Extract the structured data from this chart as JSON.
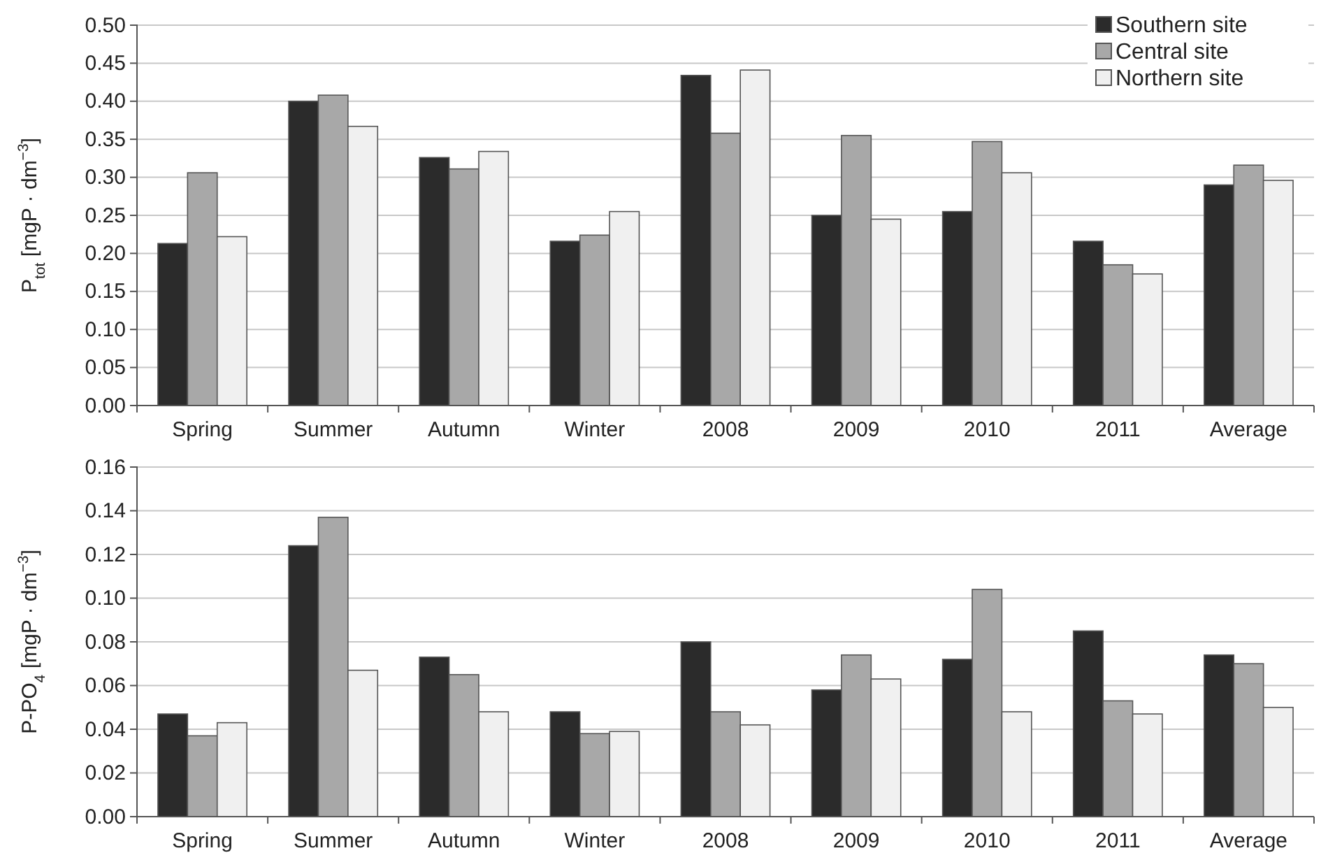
{
  "chart_data": [
    {
      "type": "bar",
      "ylabel": "P$_{tot}$ [mgP · dm$^{−3}$]",
      "categories": [
        "Spring",
        "Summer",
        "Autumn",
        "Winter",
        "2008",
        "2009",
        "2010",
        "2011",
        "Average"
      ],
      "series": [
        {
          "name": "Southern site",
          "color": "#2b2b2b",
          "values": [
            0.213,
            0.4,
            0.326,
            0.216,
            0.434,
            0.25,
            0.255,
            0.216,
            0.29
          ]
        },
        {
          "name": "Central site",
          "color": "#a8a8a8",
          "values": [
            0.306,
            0.408,
            0.311,
            0.224,
            0.358,
            0.355,
            0.347,
            0.185,
            0.316
          ]
        },
        {
          "name": "Northern site",
          "color": "#f0f0f0",
          "values": [
            0.222,
            0.367,
            0.334,
            0.255,
            0.441,
            0.245,
            0.306,
            0.173,
            0.296
          ]
        }
      ],
      "ylim": [
        0,
        0.5
      ],
      "yticks": [
        {
          "value": 0,
          "label": "0.00"
        },
        {
          "value": 0.05,
          "label": "0.05"
        },
        {
          "value": 0.1,
          "label": "0.10"
        },
        {
          "value": 0.15,
          "label": "0.15"
        },
        {
          "value": 0.2,
          "label": "0.20"
        },
        {
          "value": 0.25,
          "label": "0.25"
        },
        {
          "value": 0.3,
          "label": "0.30"
        },
        {
          "value": 0.35,
          "label": "0.35"
        },
        {
          "value": 0.4,
          "label": "0.40"
        },
        {
          "value": 0.45,
          "label": "0.45"
        },
        {
          "value": 0.5,
          "label": "0.50"
        }
      ],
      "grid": "y",
      "legend": "top right"
    },
    {
      "type": "bar",
      "ylabel": "P-PO$_{4}$ [mgP · dm$^{−3}$]",
      "categories": [
        "Spring",
        "Summer",
        "Autumn",
        "Winter",
        "2008",
        "2009",
        "2010",
        "2011",
        "Average"
      ],
      "series": [
        {
          "color": "#2b2b2b",
          "values": [
            0.047,
            0.124,
            0.073,
            0.048,
            0.08,
            0.058,
            0.072,
            0.085,
            0.074
          ]
        },
        {
          "color": "#a8a8a8",
          "values": [
            0.037,
            0.137,
            0.065,
            0.038,
            0.048,
            0.074,
            0.104,
            0.053,
            0.07
          ]
        },
        {
          "color": "#f0f0f0",
          "values": [
            0.043,
            0.067,
            0.048,
            0.039,
            0.042,
            0.063,
            0.048,
            0.047,
            0.05
          ]
        }
      ],
      "ylim": [
        0,
        0.16
      ],
      "yticks": [
        {
          "value": 0,
          "label": "0.00"
        },
        {
          "value": 0.02,
          "label": "0.02"
        },
        {
          "value": 0.04,
          "label": "0.04"
        },
        {
          "value": 0.06,
          "label": "0.06"
        },
        {
          "value": 0.08,
          "label": "0.08"
        },
        {
          "value": 0.1,
          "label": "0.10"
        },
        {
          "value": 0.12,
          "label": "0.12"
        },
        {
          "value": 0.14,
          "label": "0.14"
        },
        {
          "value": 0.16,
          "label": "0.16"
        }
      ],
      "grid": "y"
    }
  ]
}
